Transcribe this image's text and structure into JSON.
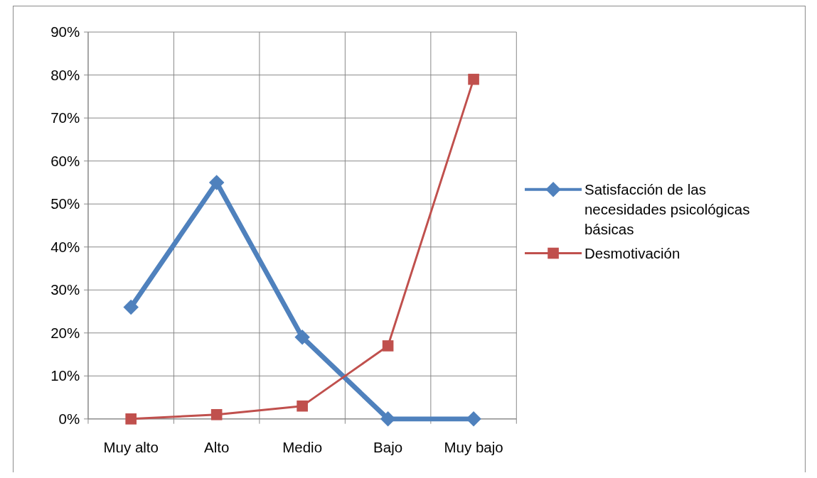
{
  "chart_data": {
    "type": "line",
    "categories": [
      "Muy alto",
      "Alto",
      "Medio",
      "Bajo",
      "Muy bajo"
    ],
    "series": [
      {
        "name": "Satisfacción de las necesidades psicológicas básicas",
        "color": "#4f81bd",
        "values": [
          26,
          55,
          19,
          0,
          0
        ],
        "marker": "diamond"
      },
      {
        "name": "Desmotivación",
        "color": "#c0504d",
        "values": [
          0,
          1,
          3,
          17,
          79
        ],
        "marker": "square"
      }
    ],
    "ylim": [
      0,
      90
    ],
    "yticks": [
      {
        "value": 0,
        "label": "0%"
      },
      {
        "value": 10,
        "label": "10%"
      },
      {
        "value": 20,
        "label": "20%"
      },
      {
        "value": 30,
        "label": "30%"
      },
      {
        "value": 40,
        "label": "40%"
      },
      {
        "value": 50,
        "label": "50%"
      },
      {
        "value": 60,
        "label": "60%"
      },
      {
        "value": 70,
        "label": "70%"
      },
      {
        "value": 80,
        "label": "80%"
      },
      {
        "value": 90,
        "label": "90%"
      }
    ],
    "grid": true,
    "legend": "right"
  }
}
